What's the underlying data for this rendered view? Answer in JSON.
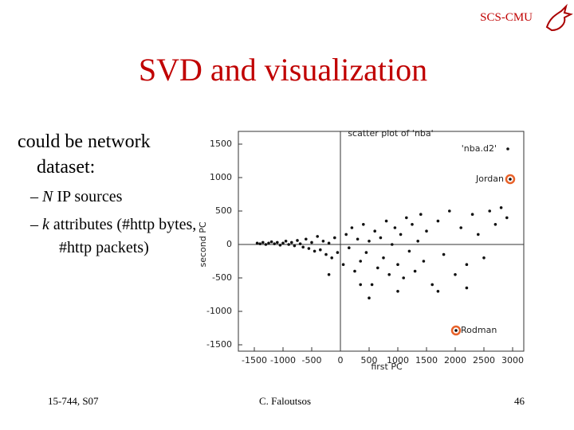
{
  "header": {
    "org": "SCS-CMU"
  },
  "title": "SVD and visualization",
  "bullets": {
    "main": "could be network dataset:",
    "sub": [
      {
        "em": "N",
        "text": " IP sources"
      },
      {
        "em": "k",
        "text": " attributes (#http bytes, #http packets)"
      }
    ]
  },
  "footer": {
    "course": "15-744, S07",
    "author": "C. Faloutsos",
    "page": "46"
  },
  "chart_data": {
    "type": "scatter",
    "title": "scatter plot of 'nba'",
    "x_label": "first PC",
    "y_label": "second PC",
    "xlim": [
      -1500,
      3000
    ],
    "ylim": [
      -1500,
      1500
    ],
    "xticks": [
      -1500,
      -1000,
      -500,
      0,
      500,
      1000,
      1500,
      2000,
      2500,
      3000
    ],
    "yticks": [
      -1500,
      -1000,
      -500,
      0,
      500,
      1000,
      1500
    ],
    "legend": "top-right",
    "series": [
      {
        "name": "'nba.d2'",
        "color": "#111111",
        "x": [
          -1450,
          -1400,
          -1350,
          -1300,
          -1250,
          -1200,
          -1150,
          -1100,
          -1050,
          -1000,
          -950,
          -900,
          -850,
          -800,
          -750,
          -700,
          -650,
          -600,
          -550,
          -500,
          -450,
          -400,
          -350,
          -300,
          -250,
          -200,
          -150,
          -100,
          -50,
          50,
          100,
          150,
          200,
          250,
          300,
          350,
          400,
          450,
          500,
          550,
          600,
          650,
          700,
          750,
          800,
          850,
          900,
          950,
          1000,
          1050,
          1100,
          1150,
          1200,
          1250,
          1300,
          1350,
          1400,
          1450,
          1500,
          1600,
          1700,
          1800,
          1900,
          2000,
          2100,
          2200,
          2300,
          2400,
          2500,
          2600,
          2700,
          2800,
          2900,
          500,
          350,
          -200,
          1000,
          1700,
          2200,
          2958,
          2014
        ],
        "values": [
          20,
          10,
          30,
          0,
          20,
          40,
          10,
          30,
          -10,
          20,
          50,
          0,
          30,
          -20,
          60,
          10,
          -40,
          80,
          -60,
          30,
          -100,
          120,
          -80,
          50,
          -150,
          20,
          -200,
          100,
          -120,
          -300,
          150,
          -50,
          250,
          -400,
          80,
          -250,
          300,
          -120,
          50,
          -600,
          200,
          -350,
          100,
          -200,
          350,
          -450,
          0,
          250,
          -300,
          150,
          -500,
          400,
          -100,
          300,
          -400,
          50,
          450,
          -250,
          200,
          -600,
          350,
          -150,
          500,
          -450,
          250,
          -300,
          450,
          150,
          -200,
          500,
          300,
          550,
          400,
          -800,
          -600,
          -450,
          -700,
          -700,
          -650,
          976,
          -1286
        ]
      }
    ],
    "annotations": [
      {
        "text": "Jordan",
        "x": 2958,
        "y": 976
      },
      {
        "text": "Rodman",
        "x": 2014,
        "y": -1286
      }
    ]
  }
}
